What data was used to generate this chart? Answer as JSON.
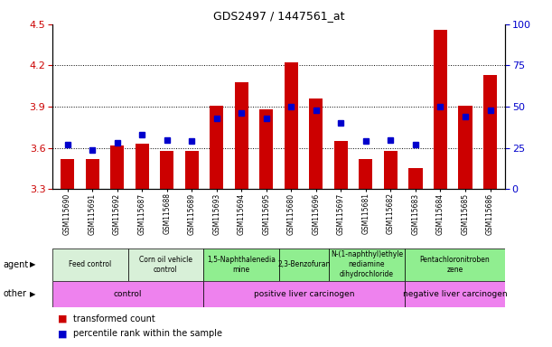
{
  "title": "GDS2497 / 1447561_at",
  "samples": [
    "GSM115690",
    "GSM115691",
    "GSM115692",
    "GSM115687",
    "GSM115688",
    "GSM115689",
    "GSM115693",
    "GSM115694",
    "GSM115695",
    "GSM115680",
    "GSM115696",
    "GSM115697",
    "GSM115681",
    "GSM115682",
    "GSM115683",
    "GSM115684",
    "GSM115685",
    "GSM115686"
  ],
  "red_values": [
    3.52,
    3.52,
    3.62,
    3.63,
    3.58,
    3.58,
    3.91,
    4.08,
    3.88,
    4.22,
    3.96,
    3.65,
    3.52,
    3.58,
    3.45,
    4.46,
    3.91,
    4.13
  ],
  "blue_values": [
    27,
    24,
    28,
    33,
    30,
    29,
    43,
    46,
    43,
    50,
    48,
    40,
    29,
    30,
    27,
    50,
    44,
    48
  ],
  "ylim_left": [
    3.3,
    4.5
  ],
  "ylim_right": [
    0,
    100
  ],
  "yticks_left": [
    3.3,
    3.6,
    3.9,
    4.2,
    4.5
  ],
  "yticks_right": [
    0,
    25,
    50,
    75,
    100
  ],
  "hlines": [
    3.6,
    3.9,
    4.2
  ],
  "agent_groups": [
    {
      "label": "Feed control",
      "start": 0,
      "end": 3,
      "color": "#d8f0d8"
    },
    {
      "label": "Corn oil vehicle\ncontrol",
      "start": 3,
      "end": 6,
      "color": "#d8f0d8"
    },
    {
      "label": "1,5-Naphthalenedia\nmine",
      "start": 6,
      "end": 9,
      "color": "#90ee90"
    },
    {
      "label": "2,3-Benzofuran",
      "start": 9,
      "end": 11,
      "color": "#90ee90"
    },
    {
      "label": "N-(1-naphthyl)ethyle\nnediamine\ndihydrochloride",
      "start": 11,
      "end": 14,
      "color": "#90ee90"
    },
    {
      "label": "Pentachloronitroben\nzene",
      "start": 14,
      "end": 18,
      "color": "#90ee90"
    }
  ],
  "other_groups": [
    {
      "label": "control",
      "start": 0,
      "end": 6,
      "color": "#ee82ee"
    },
    {
      "label": "positive liver carcinogen",
      "start": 6,
      "end": 14,
      "color": "#ee82ee"
    },
    {
      "label": "negative liver carcinogen",
      "start": 14,
      "end": 18,
      "color": "#ee82ee"
    }
  ],
  "agent_label": "agent",
  "other_label": "other",
  "legend_red": "transformed count",
  "legend_blue": "percentile rank within the sample",
  "bar_color": "#cc0000",
  "dot_color": "#0000cc",
  "background_color": "#ffffff",
  "plot_bg_color": "#ffffff",
  "grid_color": "#000000",
  "title_color": "#000000",
  "left_tick_color": "#cc0000",
  "right_tick_color": "#0000cc"
}
